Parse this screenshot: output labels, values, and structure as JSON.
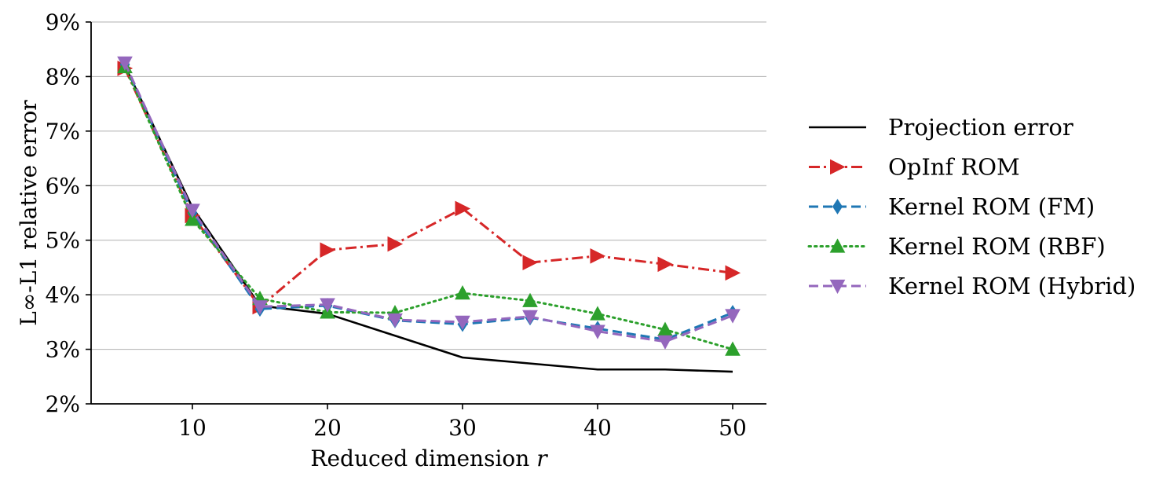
{
  "chart_data": {
    "type": "line",
    "title": "",
    "xlabel": "Reduced dimension",
    "xlabel_var": "r",
    "ylabel": "L∞-L1 relative error",
    "xlim": [
      2.5,
      52.5
    ],
    "ylim": [
      2,
      9
    ],
    "x": [
      5,
      10,
      15,
      20,
      25,
      30,
      35,
      40,
      45,
      50
    ],
    "x_ticks": [
      10,
      20,
      30,
      40,
      50
    ],
    "x_tick_labels": [
      "10",
      "20",
      "30",
      "40",
      "50"
    ],
    "y_ticks": [
      2,
      3,
      4,
      5,
      6,
      7,
      8,
      9
    ],
    "y_tick_labels": [
      "2%",
      "3%",
      "4%",
      "5%",
      "6%",
      "7%",
      "8%",
      "9%"
    ],
    "grid": "horizontal",
    "legend_position": "right",
    "series": [
      {
        "name": "Projection error",
        "color": "#000000",
        "dash": "solid",
        "marker": "none",
        "values": [
          8.2,
          5.6,
          3.8,
          3.65,
          3.25,
          2.85,
          2.74,
          2.63,
          2.63,
          2.59
        ]
      },
      {
        "name": "OpInf ROM",
        "color": "#d62728",
        "dash": "dashdot",
        "marker": "triangle-right",
        "values": [
          8.15,
          5.45,
          3.78,
          4.82,
          4.93,
          5.58,
          4.59,
          4.71,
          4.56,
          4.4
        ]
      },
      {
        "name": "Kernel ROM (FM)",
        "color": "#1f77b4",
        "dash": "dashed",
        "marker": "diamond",
        "values": [
          8.22,
          5.5,
          3.74,
          3.8,
          3.53,
          3.46,
          3.58,
          3.38,
          3.18,
          3.67
        ]
      },
      {
        "name": "Kernel ROM (RBF)",
        "color": "#2ca02c",
        "dash": "dotted",
        "marker": "triangle-up",
        "values": [
          8.18,
          5.38,
          3.93,
          3.68,
          3.67,
          4.03,
          3.89,
          3.65,
          3.36,
          3.0
        ]
      },
      {
        "name": "Kernel ROM (Hybrid)",
        "color": "#9467bd",
        "dash": "dashed",
        "marker": "triangle-down",
        "values": [
          8.25,
          5.55,
          3.78,
          3.82,
          3.54,
          3.5,
          3.6,
          3.33,
          3.14,
          3.62
        ]
      }
    ]
  }
}
